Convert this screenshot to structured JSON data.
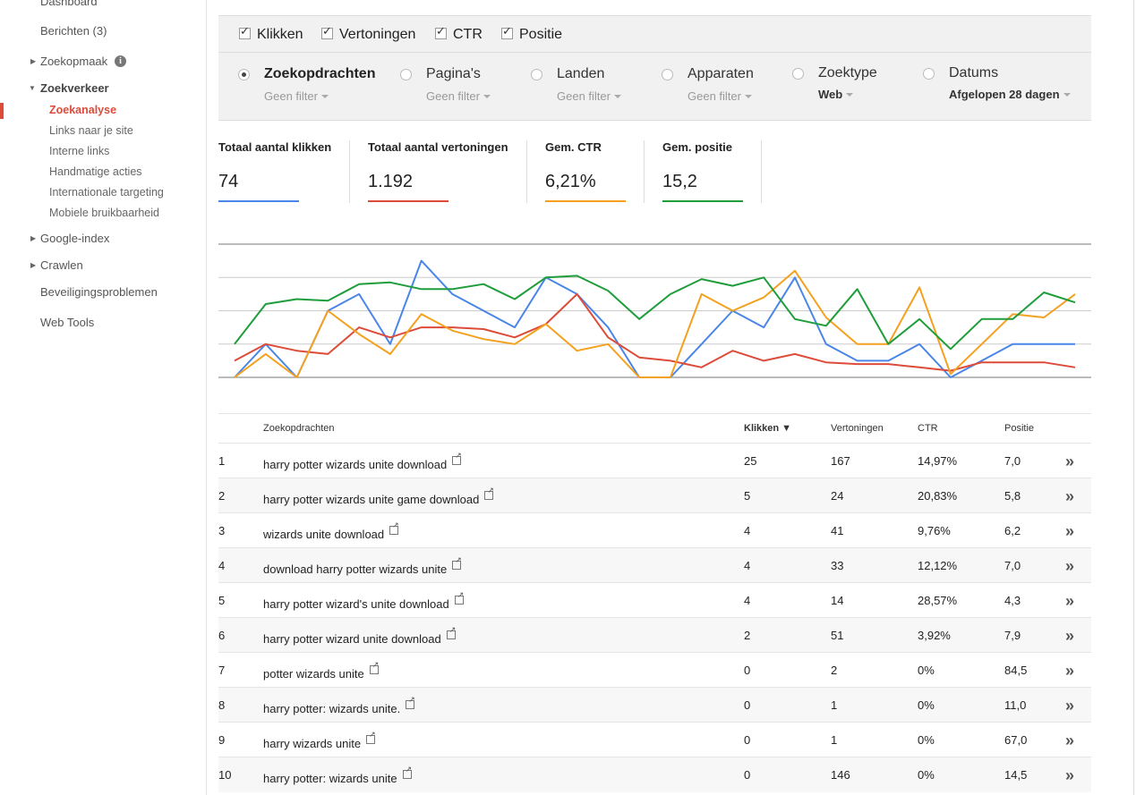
{
  "sidebar": {
    "items": [
      {
        "label": "Dashboard"
      },
      {
        "label": "Berichten (3)"
      },
      {
        "label": "Zoekopmaak"
      },
      {
        "label": "Zoekverkeer"
      },
      {
        "label": "Zoekanalyse"
      },
      {
        "label": "Links naar je site"
      },
      {
        "label": "Interne links"
      },
      {
        "label": "Handmatige acties"
      },
      {
        "label": "Internationale targeting"
      },
      {
        "label": "Mobiele bruikbaarheid"
      },
      {
        "label": "Google-index"
      },
      {
        "label": "Crawlen"
      },
      {
        "label": "Beveiligingsproblemen"
      },
      {
        "label": "Web Tools"
      }
    ],
    "info_icon": "i"
  },
  "metrics_checkboxes": [
    {
      "label": "Klikken",
      "checked": true
    },
    {
      "label": "Vertoningen",
      "checked": true
    },
    {
      "label": "CTR",
      "checked": true
    },
    {
      "label": "Positie",
      "checked": true
    }
  ],
  "dimensions": [
    {
      "label": "Zoekopdrachten",
      "filter": "Geen filter",
      "selected": true
    },
    {
      "label": "Pagina's",
      "filter": "Geen filter",
      "selected": false
    },
    {
      "label": "Landen",
      "filter": "Geen filter",
      "selected": false
    },
    {
      "label": "Apparaten",
      "filter": "Geen filter",
      "selected": false
    },
    {
      "label": "Zoektype",
      "filter": "Web",
      "selected": false
    },
    {
      "label": "Datums",
      "filter": "Afgelopen 28 dagen",
      "selected": false
    }
  ],
  "totals": [
    {
      "title": "Totaal aantal klikken",
      "value": "74",
      "color": "#4a86e8"
    },
    {
      "title": "Totaal aantal vertoningen",
      "value": "1.192",
      "color": "#dd4b39"
    },
    {
      "title": "Gem. CTR",
      "value": "6,21%",
      "color": "#f4a11f"
    },
    {
      "title": "Gem. positie",
      "value": "15,2",
      "color": "#1f9d3a"
    }
  ],
  "chart_data": {
    "type": "line",
    "x": [
      1,
      2,
      3,
      4,
      5,
      6,
      7,
      8,
      9,
      10,
      11,
      12,
      13,
      14,
      15,
      16,
      17,
      18,
      19,
      20,
      21,
      22,
      23,
      24,
      25,
      26,
      27,
      28
    ],
    "series": [
      {
        "color": "#4a86e8",
        "values": [
          0,
          1,
          0,
          2,
          2.5,
          1,
          3.5,
          2.5,
          2,
          1.5,
          3,
          2.5,
          1.5,
          0,
          0,
          1,
          2,
          1.5,
          3,
          1,
          0.5,
          0.5,
          1,
          0,
          0.5,
          1,
          1,
          1
        ]
      },
      {
        "color": "#dd4b39",
        "values": [
          0.5,
          1,
          0.8,
          0.7,
          1.5,
          1.2,
          1.5,
          1.5,
          1.45,
          1.2,
          1.6,
          2.5,
          1.2,
          0.6,
          0.5,
          0.3,
          0.8,
          0.5,
          0.7,
          0.45,
          0.4,
          0.4,
          0.3,
          0.2,
          0.45,
          0.45,
          0.45,
          0.3
        ]
      },
      {
        "color": "#f4a11f",
        "values": [
          0,
          0.7,
          0,
          2,
          1.3,
          0.7,
          1.9,
          1.4,
          1.15,
          1,
          1.6,
          0.8,
          1,
          0,
          0,
          2.5,
          2,
          2.4,
          3.2,
          1.8,
          1,
          1,
          2.7,
          0.1,
          1,
          1.9,
          1.8,
          2.5
        ]
      },
      {
        "color": "#1f9d3a",
        "values": [
          1,
          2.2,
          2.35,
          2.3,
          2.8,
          2.85,
          2.65,
          2.65,
          2.8,
          2.35,
          3,
          3.05,
          2.6,
          1.75,
          2.5,
          2.95,
          2.75,
          3,
          1.75,
          1.55,
          2.65,
          1,
          1.75,
          0.85,
          1.75,
          1.75,
          2.55,
          2.25
        ]
      }
    ]
  },
  "table": {
    "headers": {
      "query": "Zoekopdrachten",
      "clicks": "Klikken ▼",
      "impressions": "Vertoningen",
      "ctr": "CTR",
      "position": "Positie"
    },
    "rows": [
      {
        "n": "1",
        "query": "harry potter wizards unite download",
        "clicks": "25",
        "impressions": "167",
        "ctr": "14,97%",
        "position": "7,0"
      },
      {
        "n": "2",
        "query": "harry potter wizards unite game download",
        "clicks": "5",
        "impressions": "24",
        "ctr": "20,83%",
        "position": "5,8"
      },
      {
        "n": "3",
        "query": "wizards unite download",
        "clicks": "4",
        "impressions": "41",
        "ctr": "9,76%",
        "position": "6,2"
      },
      {
        "n": "4",
        "query": "download harry potter wizards unite",
        "clicks": "4",
        "impressions": "33",
        "ctr": "12,12%",
        "position": "7,0"
      },
      {
        "n": "5",
        "query": "harry potter wizard's unite download",
        "clicks": "4",
        "impressions": "14",
        "ctr": "28,57%",
        "position": "4,3"
      },
      {
        "n": "6",
        "query": "harry potter wizard unite download",
        "clicks": "2",
        "impressions": "51",
        "ctr": "3,92%",
        "position": "7,9"
      },
      {
        "n": "7",
        "query": "potter wizards unite",
        "clicks": "0",
        "impressions": "2",
        "ctr": "0%",
        "position": "84,5"
      },
      {
        "n": "8",
        "query": "harry potter: wizards unite.",
        "clicks": "0",
        "impressions": "1",
        "ctr": "0%",
        "position": "11,0"
      },
      {
        "n": "9",
        "query": "harry wizards unite",
        "clicks": "0",
        "impressions": "1",
        "ctr": "0%",
        "position": "67,0"
      },
      {
        "n": "10",
        "query": "harry potter: wizards unite",
        "clicks": "0",
        "impressions": "146",
        "ctr": "0%",
        "position": "14,5"
      }
    ],
    "row_action": "»"
  }
}
